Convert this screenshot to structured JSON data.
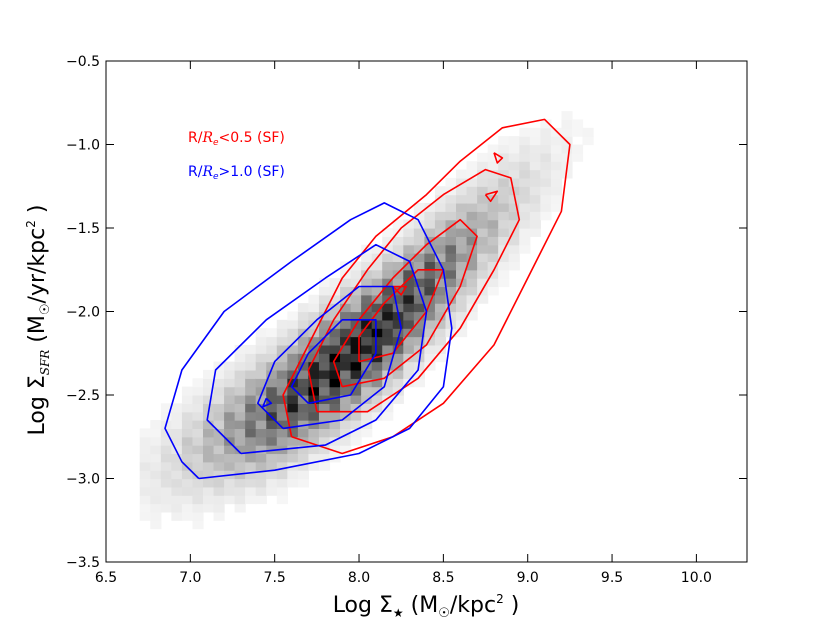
{
  "chart_data": {
    "type": "heatmap",
    "title": "",
    "xlabel": "Log Σ★ (M☉/kpc²)",
    "ylabel": "Log Σ_SFR (M☉/yr/kpc²)",
    "xlim": [
      6.5,
      10.3
    ],
    "ylim": [
      -3.5,
      -0.5
    ],
    "xticks": [
      "6.5",
      "7.0",
      "7.5",
      "8.0",
      "8.5",
      "9.0",
      "9.5",
      "10.0"
    ],
    "yticks": [
      "−0.5",
      "−1.0",
      "−1.5",
      "−2.0",
      "−2.5",
      "−3.0",
      "−3.5"
    ],
    "grid": false,
    "legend_placement": "upper-left",
    "density_ridge": [
      {
        "x": 7.0,
        "y": -2.85
      },
      {
        "x": 7.5,
        "y": -2.6
      },
      {
        "x": 7.9,
        "y": -2.3
      },
      {
        "x": 8.2,
        "y": -2.05
      },
      {
        "x": 8.5,
        "y": -1.75
      },
      {
        "x": 8.9,
        "y": -1.35
      }
    ],
    "density_peak": {
      "x": 7.95,
      "y": -2.3
    },
    "series": [
      {
        "name": "R/Re<0.5 (SF)",
        "color": "#ff0000",
        "contours": [
          [
            [
              7.6,
              -2.75
            ],
            [
              7.9,
              -2.85
            ],
            [
              8.2,
              -2.75
            ],
            [
              8.5,
              -2.55
            ],
            [
              8.8,
              -2.2
            ],
            [
              9.0,
              -1.8
            ],
            [
              9.2,
              -1.4
            ],
            [
              9.25,
              -1.0
            ],
            [
              9.1,
              -0.85
            ],
            [
              8.85,
              -0.9
            ],
            [
              8.6,
              -1.1
            ],
            [
              8.4,
              -1.3
            ],
            [
              8.1,
              -1.55
            ],
            [
              7.9,
              -1.8
            ],
            [
              7.7,
              -2.2
            ],
            [
              7.55,
              -2.5
            ],
            [
              7.6,
              -2.75
            ]
          ],
          [
            [
              7.75,
              -2.6
            ],
            [
              8.05,
              -2.6
            ],
            [
              8.35,
              -2.4
            ],
            [
              8.6,
              -2.1
            ],
            [
              8.8,
              -1.75
            ],
            [
              8.95,
              -1.45
            ],
            [
              8.9,
              -1.2
            ],
            [
              8.75,
              -1.15
            ],
            [
              8.5,
              -1.3
            ],
            [
              8.25,
              -1.5
            ],
            [
              8.05,
              -1.75
            ],
            [
              7.85,
              -2.05
            ],
            [
              7.7,
              -2.35
            ],
            [
              7.75,
              -2.6
            ]
          ],
          [
            [
              7.9,
              -2.45
            ],
            [
              8.15,
              -2.4
            ],
            [
              8.4,
              -2.2
            ],
            [
              8.6,
              -1.85
            ],
            [
              8.7,
              -1.55
            ],
            [
              8.6,
              -1.45
            ],
            [
              8.4,
              -1.6
            ],
            [
              8.2,
              -1.8
            ],
            [
              8.0,
              -2.05
            ],
            [
              7.85,
              -2.3
            ],
            [
              7.9,
              -2.45
            ]
          ],
          [
            [
              8.0,
              -2.3
            ],
            [
              8.2,
              -2.25
            ],
            [
              8.4,
              -2.0
            ],
            [
              8.5,
              -1.75
            ],
            [
              8.35,
              -1.75
            ],
            [
              8.15,
              -1.95
            ],
            [
              8.0,
              -2.15
            ],
            [
              8.0,
              -2.3
            ]
          ],
          [
            [
              8.2,
              -1.85
            ],
            [
              8.28,
              -1.85
            ],
            [
              8.25,
              -1.9
            ],
            [
              8.2,
              -1.85
            ]
          ],
          [
            [
              8.75,
              -1.3
            ],
            [
              8.82,
              -1.28
            ],
            [
              8.78,
              -1.34
            ],
            [
              8.75,
              -1.3
            ]
          ],
          [
            [
              8.8,
              -1.05
            ],
            [
              8.85,
              -1.08
            ],
            [
              8.82,
              -1.11
            ],
            [
              8.8,
              -1.05
            ]
          ]
        ]
      },
      {
        "name": "R/Re>1.0 (SF)",
        "color": "#0000ff",
        "contours": [
          [
            [
              7.05,
              -3.0
            ],
            [
              7.5,
              -2.95
            ],
            [
              8.0,
              -2.85
            ],
            [
              8.3,
              -2.7
            ],
            [
              8.5,
              -2.45
            ],
            [
              8.55,
              -2.1
            ],
            [
              8.5,
              -1.75
            ],
            [
              8.35,
              -1.45
            ],
            [
              8.15,
              -1.35
            ],
            [
              7.95,
              -1.45
            ],
            [
              7.6,
              -1.7
            ],
            [
              7.2,
              -2.0
            ],
            [
              6.95,
              -2.35
            ],
            [
              6.85,
              -2.7
            ],
            [
              6.95,
              -2.9
            ],
            [
              7.05,
              -3.0
            ]
          ],
          [
            [
              7.3,
              -2.85
            ],
            [
              7.8,
              -2.8
            ],
            [
              8.1,
              -2.65
            ],
            [
              8.35,
              -2.35
            ],
            [
              8.4,
              -2.0
            ],
            [
              8.3,
              -1.7
            ],
            [
              8.1,
              -1.6
            ],
            [
              7.8,
              -1.8
            ],
            [
              7.45,
              -2.05
            ],
            [
              7.15,
              -2.35
            ],
            [
              7.1,
              -2.65
            ],
            [
              7.3,
              -2.85
            ]
          ],
          [
            [
              7.55,
              -2.7
            ],
            [
              7.9,
              -2.65
            ],
            [
              8.15,
              -2.45
            ],
            [
              8.25,
              -2.1
            ],
            [
              8.2,
              -1.85
            ],
            [
              8.0,
              -1.85
            ],
            [
              7.75,
              -2.05
            ],
            [
              7.5,
              -2.3
            ],
            [
              7.4,
              -2.55
            ],
            [
              7.55,
              -2.7
            ]
          ],
          [
            [
              7.7,
              -2.55
            ],
            [
              7.95,
              -2.5
            ],
            [
              8.1,
              -2.25
            ],
            [
              8.1,
              -2.05
            ],
            [
              7.9,
              -2.05
            ],
            [
              7.7,
              -2.25
            ],
            [
              7.6,
              -2.45
            ],
            [
              7.7,
              -2.55
            ]
          ],
          [
            [
              7.45,
              -2.52
            ],
            [
              7.48,
              -2.55
            ],
            [
              7.43,
              -2.57
            ],
            [
              7.45,
              -2.52
            ]
          ]
        ]
      }
    ]
  },
  "legend": {
    "entries": [
      {
        "prefix": "R/",
        "var": "R",
        "sub": "e",
        "suffix": "<0.5 (SF)",
        "color": "#ff0000"
      },
      {
        "prefix": "R/",
        "var": "R",
        "sub": "e",
        "suffix": ">1.0 (SF)",
        "color": "#0000ff"
      }
    ]
  },
  "axes": {
    "x_title": {
      "prefix": "Log Σ",
      "sub": "★",
      "mid": " (M",
      "sun": "☉",
      "unit": "/kpc",
      "sup": "2",
      "end": " )"
    },
    "y_title": {
      "prefix": "Log Σ",
      "sub": "SFR",
      "mid": " (M",
      "sun": "☉",
      "unit": "/yr/kpc",
      "sup": "2",
      "end": " )"
    }
  }
}
